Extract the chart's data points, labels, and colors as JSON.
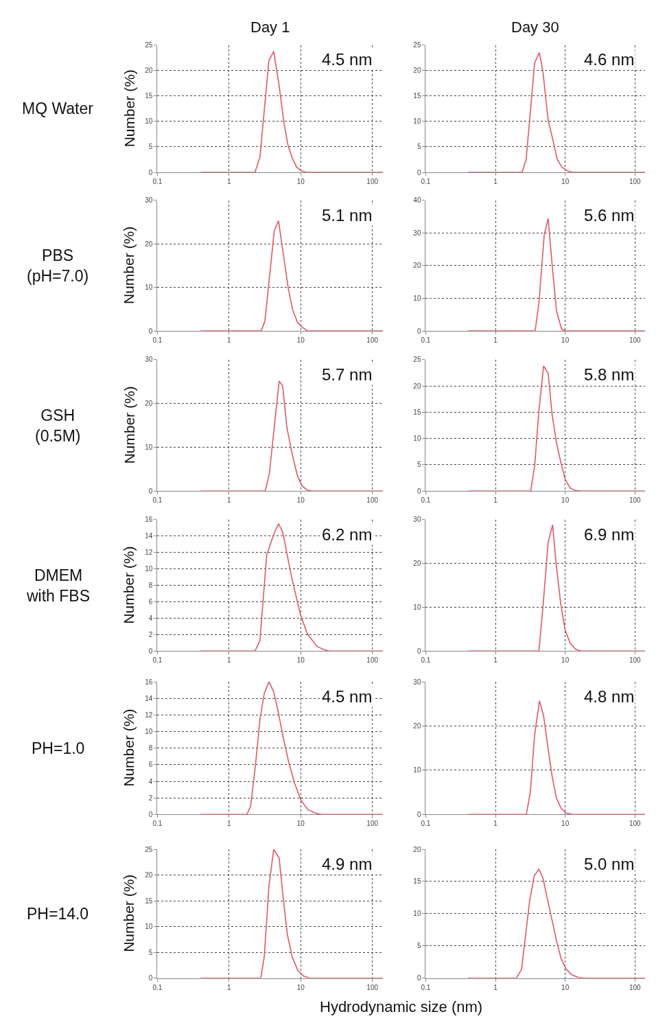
{
  "chart_data": [
    {
      "type": "line",
      "title": "Day 1",
      "ylabel": "Number (%)",
      "annotations": [
        "4.5 nm",
        "MQ Water"
      ],
      "log": "x",
      "grid": true,
      "xlim": [
        0.1,
        140
      ],
      "xticks": [
        0.1,
        1,
        10,
        100
      ],
      "ylim": [
        0,
        25
      ],
      "yticks": [
        0,
        5,
        10,
        15,
        20,
        25
      ],
      "x": [
        0.4,
        2.3,
        2.7,
        3.6,
        4.2,
        5.0,
        5.8,
        6.6,
        7.6,
        8.8,
        10.2,
        12,
        140
      ],
      "series": [
        {
          "color": "#e0606c",
          "values": [
            0,
            0,
            3,
            22,
            23.7,
            17,
            10,
            5.5,
            2.8,
            1,
            0.3,
            0,
            0
          ]
        }
      ]
    },
    {
      "type": "line",
      "title": "Day 30",
      "annotations": [
        "4.6 nm"
      ],
      "log": "x",
      "grid": true,
      "xlim": [
        0.1,
        140
      ],
      "xticks": [
        0.1,
        1,
        10,
        100
      ],
      "ylim": [
        0,
        25
      ],
      "yticks": [
        0,
        5,
        10,
        15,
        20,
        25
      ],
      "x": [
        0.4,
        2.4,
        2.75,
        3.65,
        4.26,
        4.8,
        5.7,
        6.7,
        7.7,
        9,
        10.7,
        12.6,
        140
      ],
      "series": [
        {
          "color": "#e0606c",
          "values": [
            0,
            0,
            2.5,
            21.5,
            23.5,
            19.7,
            10.2,
            6.2,
            2.5,
            1,
            0.3,
            0,
            0
          ]
        }
      ]
    },
    {
      "type": "line",
      "ylabel": "Number (%)",
      "annotations": [
        "5.1 nm",
        "PBS\n(pH=7.0)"
      ],
      "log": "x",
      "grid": true,
      "xlim": [
        0.1,
        140
      ],
      "xticks": [
        0.1,
        1,
        10,
        100
      ],
      "ylim": [
        0,
        30
      ],
      "yticks": [
        0,
        10,
        20,
        30
      ],
      "x": [
        0.4,
        2.8,
        3.16,
        4.27,
        4.9,
        5.6,
        6.7,
        7.7,
        9,
        10.8,
        12.5,
        140
      ],
      "series": [
        {
          "color": "#e0606c",
          "values": [
            0,
            0,
            2.2,
            22.9,
            25.3,
            18.7,
            9.8,
            4.9,
            2,
            0.7,
            0,
            0
          ]
        }
      ]
    },
    {
      "type": "line",
      "annotations": [
        "5.6 nm"
      ],
      "log": "x",
      "grid": true,
      "xlim": [
        0.1,
        140
      ],
      "xticks": [
        0.1,
        1,
        10,
        100
      ],
      "ylim": [
        0,
        40
      ],
      "yticks": [
        0,
        10,
        20,
        30,
        40
      ],
      "x": [
        0.4,
        3.7,
        4.2,
        5.0,
        5.7,
        6.45,
        7.5,
        8.9,
        10.2,
        140
      ],
      "series": [
        {
          "color": "#e0606c",
          "values": [
            0,
            0,
            8.5,
            29.4,
            34.4,
            21,
            6.1,
            0.5,
            0,
            0
          ]
        }
      ]
    },
    {
      "type": "line",
      "ylabel": "Number (%)",
      "annotations": [
        "5.7 nm",
        "GSH\n(0.5M)"
      ],
      "log": "x",
      "grid": true,
      "xlim": [
        0.1,
        140
      ],
      "xticks": [
        0.1,
        1,
        10,
        100
      ],
      "ylim": [
        0,
        30
      ],
      "yticks": [
        0,
        10,
        20,
        30
      ],
      "x": [
        0.4,
        3.2,
        3.65,
        5.0,
        5.6,
        6.4,
        7.6,
        9,
        10.4,
        12.4,
        14.4,
        140
      ],
      "series": [
        {
          "color": "#e0606c",
          "values": [
            0,
            0,
            4,
            25.1,
            24,
            14.6,
            8.4,
            3.5,
            1.2,
            0.2,
            0,
            0
          ]
        }
      ]
    },
    {
      "type": "line",
      "annotations": [
        "5.8 nm"
      ],
      "log": "x",
      "grid": true,
      "xlim": [
        0.1,
        140
      ],
      "xticks": [
        0.1,
        1,
        10,
        100
      ],
      "ylim": [
        0,
        25
      ],
      "yticks": [
        0,
        5,
        10,
        15,
        20,
        25
      ],
      "x": [
        0.4,
        3.2,
        3.65,
        4.2,
        4.9,
        5.7,
        6.5,
        7.5,
        8.7,
        10,
        11.9,
        14,
        17,
        140
      ],
      "series": [
        {
          "color": "#e0606c",
          "values": [
            0,
            0,
            4.8,
            15.4,
            23.8,
            22.4,
            14.5,
            9.2,
            5.3,
            2.2,
            0.5,
            0.1,
            0,
            0
          ]
        }
      ]
    },
    {
      "type": "line",
      "ylabel": "Number (%)",
      "annotations": [
        "6.2 nm",
        "DMEM\nwith FBS"
      ],
      "log": "x",
      "grid": true,
      "xlim": [
        0.1,
        140
      ],
      "xticks": [
        0.1,
        1,
        10,
        100
      ],
      "ylim": [
        0,
        16
      ],
      "yticks": [
        0,
        2,
        4,
        6,
        8,
        10,
        12,
        14,
        16
      ],
      "x": [
        0.4,
        2.3,
        2.7,
        3.35,
        4.2,
        4.9,
        5.6,
        7.5,
        10,
        12.4,
        16.7,
        20.7,
        25,
        140
      ],
      "series": [
        {
          "color": "#e0606c",
          "values": [
            0,
            0,
            1.3,
            11.7,
            14.2,
            15.5,
            14.5,
            8.9,
            4.3,
            2.1,
            0.6,
            0.2,
            0,
            0
          ]
        }
      ]
    },
    {
      "type": "line",
      "annotations": [
        "6.9 nm"
      ],
      "log": "x",
      "grid": true,
      "xlim": [
        0.1,
        140
      ],
      "xticks": [
        0.1,
        1,
        10,
        100
      ],
      "ylim": [
        0,
        30
      ],
      "yticks": [
        0,
        10,
        20,
        30
      ],
      "x": [
        0.4,
        4.2,
        4.85,
        5.7,
        6.6,
        7.4,
        8.6,
        10,
        11.8,
        14.1,
        16.7,
        140
      ],
      "series": [
        {
          "color": "#e0606c",
          "values": [
            0,
            0,
            11,
            24.9,
            28.8,
            20.1,
            11,
            4.7,
            1.8,
            0.4,
            0,
            0
          ]
        }
      ]
    },
    {
      "type": "line",
      "ylabel": "Number (%)",
      "annotations": [
        "4.5 nm",
        "PH=1.0"
      ],
      "log": "x",
      "grid": true,
      "xlim": [
        0.1,
        140
      ],
      "xticks": [
        0.1,
        1,
        10,
        100
      ],
      "ylim": [
        0,
        16
      ],
      "yticks": [
        0,
        2,
        4,
        6,
        8,
        10,
        12,
        14,
        16
      ],
      "x": [
        0.4,
        1.77,
        2.0,
        2.36,
        2.7,
        3.1,
        3.6,
        4.2,
        4.9,
        5.7,
        6.8,
        8.2,
        10.1,
        12.6,
        15.7,
        19.5,
        140
      ],
      "series": [
        {
          "color": "#e0606c",
          "values": [
            0,
            0,
            1.0,
            6.3,
            11.5,
            14.6,
            16,
            14.8,
            12.2,
            9.3,
            6.3,
            3.8,
            1.7,
            0.6,
            0.2,
            0,
            0
          ]
        }
      ]
    },
    {
      "type": "line",
      "annotations": [
        "4.8 nm"
      ],
      "log": "x",
      "grid": true,
      "xlim": [
        0.1,
        140
      ],
      "xticks": [
        0.1,
        1,
        10,
        100
      ],
      "ylim": [
        0,
        30
      ],
      "yticks": [
        0,
        10,
        20,
        30
      ],
      "x": [
        0.4,
        2.77,
        3.16,
        3.64,
        4.28,
        4.9,
        5.7,
        6.5,
        7.5,
        8.8,
        10.4,
        12.7,
        140
      ],
      "series": [
        {
          "color": "#e0606c",
          "values": [
            0,
            0,
            5,
            17.9,
            25.7,
            22.3,
            14.8,
            8.6,
            3.7,
            1.3,
            0.3,
            0,
            0
          ]
        }
      ]
    },
    {
      "type": "line",
      "ylabel": "Number (%)",
      "annotations": [
        "4.9 nm",
        "PH=14.0"
      ],
      "log": "x",
      "grid": true,
      "xlim": [
        0.1,
        140
      ],
      "xticks": [
        0.1,
        1,
        10,
        100
      ],
      "ylim": [
        0,
        25
      ],
      "yticks": [
        0,
        5,
        10,
        15,
        20,
        25
      ],
      "x": [
        0.4,
        2.77,
        3.1,
        3.6,
        4.2,
        5.0,
        5.7,
        6.5,
        7.6,
        9.1,
        10.9,
        13.1,
        140
      ],
      "series": [
        {
          "color": "#e0606c",
          "values": [
            0,
            0,
            4.1,
            17.8,
            25,
            23.3,
            15.5,
            8.5,
            4.1,
            1.5,
            0.4,
            0,
            0
          ]
        }
      ]
    },
    {
      "type": "line",
      "xlabel": "Hydrodynamic size (nm)",
      "annotations": [
        "5.0 nm"
      ],
      "log": "x",
      "grid": true,
      "xlim": [
        0.1,
        140
      ],
      "xticks": [
        0.1,
        1,
        10,
        100
      ],
      "ylim": [
        0,
        20
      ],
      "yticks": [
        0,
        5,
        10,
        15,
        20
      ],
      "x": [
        0.4,
        2.0,
        2.36,
        2.7,
        3.1,
        3.6,
        4.2,
        4.8,
        5.6,
        6.6,
        7.6,
        8.75,
        10.3,
        12.4,
        15.3,
        19,
        140
      ],
      "series": [
        {
          "color": "#e0606c",
          "values": [
            0,
            0,
            1.3,
            6.6,
            12.1,
            15.9,
            16.9,
            15.5,
            12.1,
            8.6,
            5.5,
            3,
            1.4,
            0.5,
            0.1,
            0,
            0
          ]
        }
      ]
    }
  ]
}
